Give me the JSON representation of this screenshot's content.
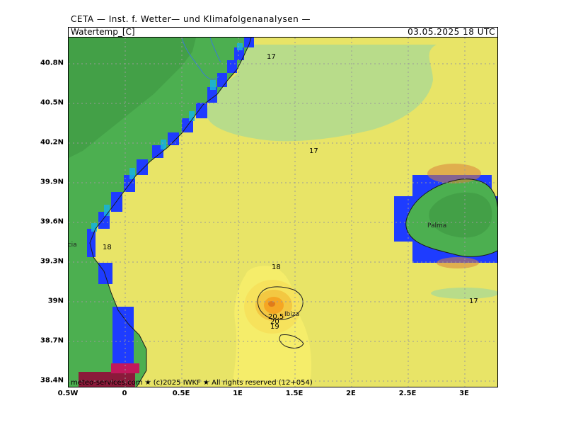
{
  "header": {
    "institute": "CETA — Inst. f. Wetter— und Klimafolgenanalysen —",
    "parameter": "Watertemp_[C]",
    "valid_time": "03.05.2025  18 UTC"
  },
  "axes": {
    "lat_ticks": [
      "40.8N",
      "40.5N",
      "40.2N",
      "39.9N",
      "39.6N",
      "39.3N",
      "39N",
      "38.7N",
      "38.4N"
    ],
    "lon_ticks": [
      "0.5W",
      "0",
      "0.5E",
      "1E",
      "1.5E",
      "2E",
      "2.5E",
      "3E"
    ]
  },
  "places": {
    "valencia": "Valencia",
    "palma": "Palma",
    "ibiza": "Ibiza"
  },
  "contour_labels": [
    "17",
    "17",
    "18",
    "18",
    "17",
    "20.5",
    "20",
    "19"
  ],
  "credit": "meteo-services.com ★ (c)2025 IWKF ★ All rights reserved (12+054)",
  "colors": {
    "land": "#4caf50",
    "sea_warm": "#e8e467",
    "sea_cool": "#b8dc8a",
    "coastal_blue": "#1e3cff",
    "hotspot": "#f5a623"
  }
}
